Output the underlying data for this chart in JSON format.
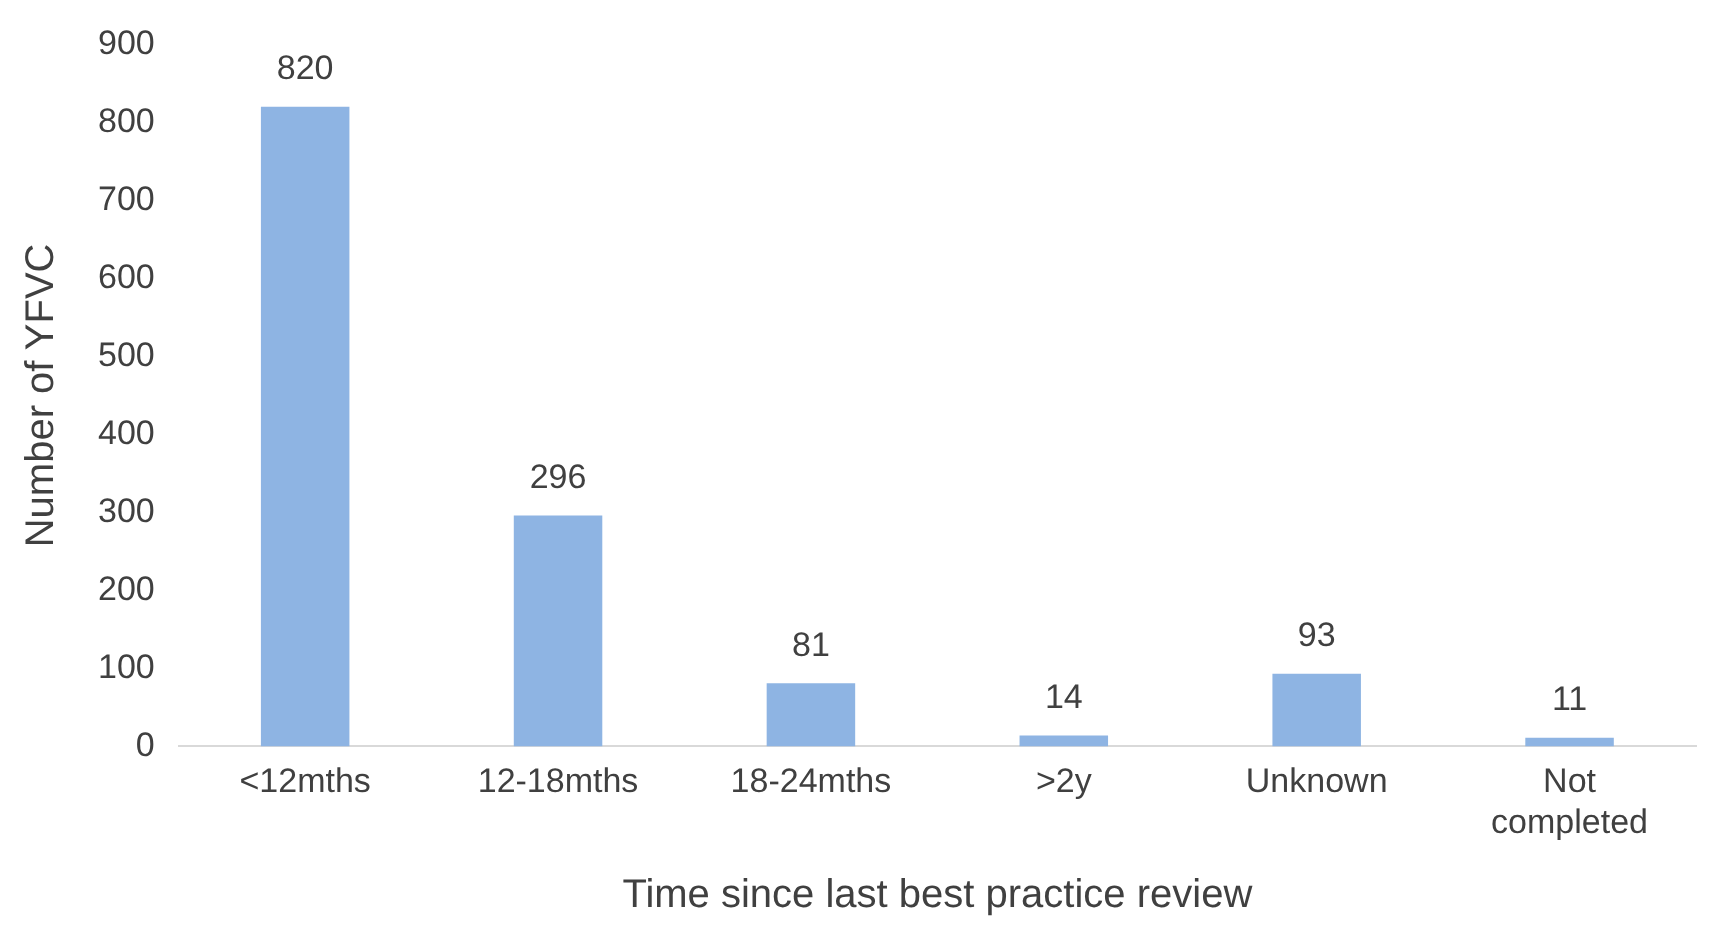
{
  "chart_data": {
    "type": "bar",
    "xlabel": "Time since last best practice review",
    "ylabel": "Number of YFVC",
    "categories": [
      "<12mths",
      "12-18mths",
      "18-24mths",
      ">2y",
      "Unknown",
      "Not completed"
    ],
    "values": [
      820,
      296,
      81,
      14,
      93,
      11
    ],
    "color": "#8eb4e3",
    "ylim": [
      0,
      900
    ],
    "yticks": [
      0,
      100,
      200,
      300,
      400,
      500,
      600,
      700,
      800,
      900
    ],
    "grid": false,
    "legend": false,
    "data_labels": true
  }
}
